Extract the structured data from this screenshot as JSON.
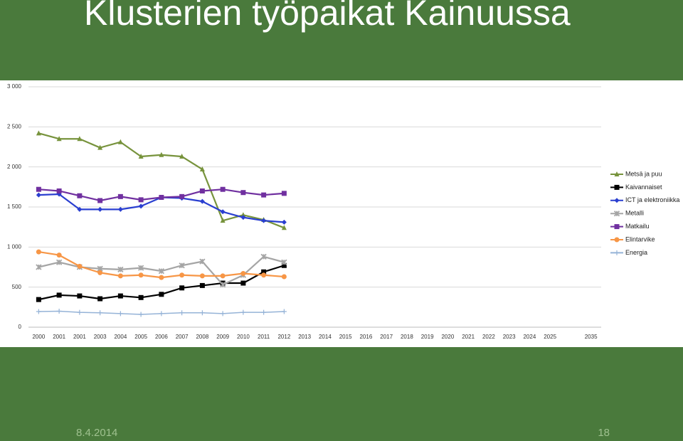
{
  "slide_title": "Klusterien työpaikat Kainuussa",
  "footer": {
    "date": "8.4.2014",
    "page": "18"
  },
  "chart_data": {
    "type": "line",
    "categories": [
      "2000",
      "2001",
      "2001",
      "2003",
      "2004",
      "2005",
      "2006",
      "2007",
      "2008",
      "2009",
      "2010",
      "2011",
      "2012",
      "2013",
      "2014",
      "2015",
      "2016",
      "2017",
      "2018",
      "2019",
      "2020",
      "2021",
      "2022",
      "2023",
      "2024",
      "2025",
      null,
      "2035"
    ],
    "ylim": [
      0,
      3000
    ],
    "yticks": [
      {
        "value": 0,
        "label": "0"
      },
      {
        "value": 500,
        "label": "500"
      },
      {
        "value": 1000,
        "label": "1 000"
      },
      {
        "value": 1500,
        "label": "1 500"
      },
      {
        "value": 2000,
        "label": "2 000"
      },
      {
        "value": 2500,
        "label": "2 500"
      },
      {
        "value": 3000,
        "label": "3 000"
      }
    ],
    "grid": true,
    "legend": "right",
    "series": [
      {
        "name": "Metsä ja puu",
        "color": "#77933c",
        "marker": "triangle",
        "values": [
          2420,
          2350,
          2350,
          2240,
          2310,
          2130,
          2150,
          2130,
          1970,
          1330,
          1400,
          1340,
          1240,
          null,
          null,
          null,
          null,
          null,
          null,
          null,
          null,
          null,
          null,
          null,
          null,
          null,
          null,
          null
        ]
      },
      {
        "name": "Kaivannaiset",
        "color": "#000000",
        "marker": "square",
        "values": [
          345,
          400,
          390,
          355,
          390,
          370,
          410,
          490,
          520,
          550,
          550,
          690,
          770,
          null,
          null,
          null,
          null,
          null,
          null,
          null,
          null,
          null,
          null,
          null,
          null,
          null,
          null,
          null
        ]
      },
      {
        "name": "ICT ja elektroniikka",
        "color": "#2a3fd0",
        "marker": "diamond",
        "values": [
          1650,
          1660,
          1470,
          1470,
          1470,
          1510,
          1620,
          1610,
          1570,
          1440,
          1370,
          1330,
          1310,
          null,
          null,
          null,
          null,
          null,
          null,
          null,
          null,
          null,
          null,
          null,
          null,
          null,
          null,
          null
        ]
      },
      {
        "name": "Metalli",
        "color": "#a5a5a5",
        "marker": "cross",
        "values": [
          750,
          810,
          750,
          730,
          720,
          740,
          700,
          770,
          820,
          530,
          650,
          880,
          810,
          null,
          null,
          null,
          null,
          null,
          null,
          null,
          null,
          null,
          null,
          null,
          null,
          null,
          null,
          null
        ]
      },
      {
        "name": "Matkailu",
        "color": "#7030a0",
        "marker": "square",
        "values": [
          1720,
          1700,
          1640,
          1580,
          1630,
          1590,
          1620,
          1630,
          1700,
          1720,
          1680,
          1650,
          1670,
          null,
          null,
          null,
          null,
          null,
          null,
          null,
          null,
          null,
          null,
          null,
          null,
          null,
          null,
          null
        ]
      },
      {
        "name": "Elintarvike",
        "color": "#f79646",
        "marker": "circle",
        "values": [
          940,
          900,
          760,
          680,
          640,
          650,
          620,
          650,
          640,
          640,
          670,
          650,
          630,
          null,
          null,
          null,
          null,
          null,
          null,
          null,
          null,
          null,
          null,
          null,
          null,
          null,
          null,
          null
        ]
      },
      {
        "name": "Energia",
        "color": "#95b3d7",
        "marker": "plus",
        "values": [
          195,
          200,
          185,
          180,
          170,
          160,
          170,
          180,
          180,
          170,
          185,
          185,
          195,
          null,
          null,
          null,
          null,
          null,
          null,
          null,
          null,
          null,
          null,
          null,
          null,
          null,
          null,
          null
        ]
      }
    ]
  }
}
